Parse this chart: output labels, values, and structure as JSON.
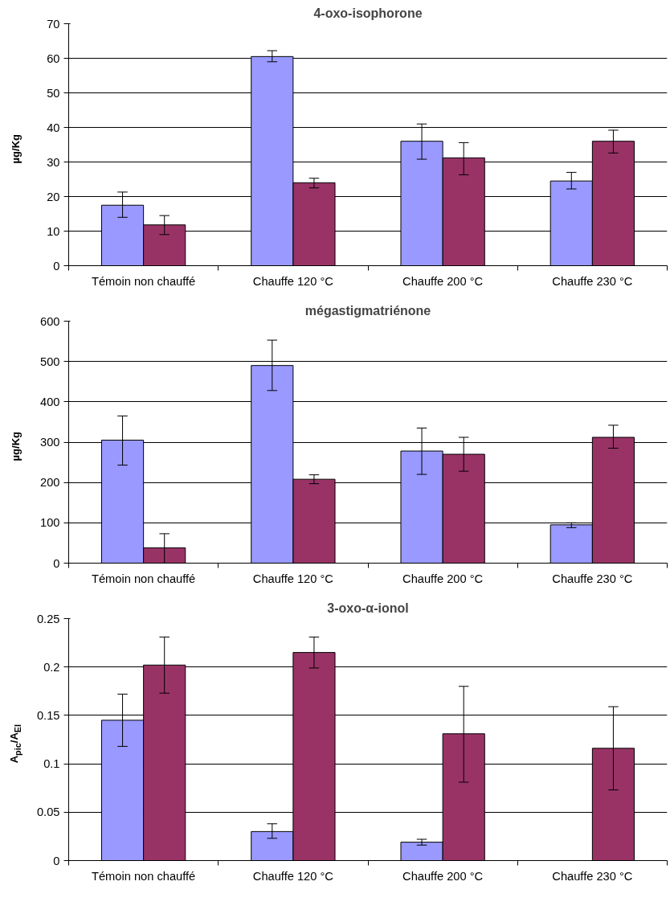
{
  "chart_data": [
    {
      "type": "bar",
      "title": "4-oxo-isophorone",
      "ylabel": "µg/Kg",
      "categories": [
        "Témoin non chauffé",
        "Chauffe 120 °C",
        "Chauffe 200 °C",
        "Chauffe 230 °C"
      ],
      "ylim": [
        0,
        70
      ],
      "yticks": [
        0,
        10,
        20,
        30,
        40,
        50,
        60,
        70
      ],
      "grid": "y",
      "series": [
        {
          "color": "#9999ff",
          "values": [
            17.5,
            60.5,
            36,
            24.5
          ],
          "errors": [
            [
              14,
              21.3
            ],
            [
              59,
              62.2
            ],
            [
              30.8,
              41
            ],
            [
              22.2,
              27
            ]
          ]
        },
        {
          "color": "#993366",
          "values": [
            11.8,
            24,
            31.2,
            36
          ],
          "errors": [
            [
              9,
              14.5
            ],
            [
              22.5,
              25.3
            ],
            [
              26.3,
              35.6
            ],
            [
              32.6,
              39.2
            ]
          ]
        }
      ]
    },
    {
      "type": "bar",
      "title": "mégastigmatriénone",
      "ylabel": "µg/Kg",
      "categories": [
        "Témoin non chauffé",
        "Chauffe 120 °C",
        "Chauffe 200 °C",
        "Chauffe 230 °C"
      ],
      "ylim": [
        0,
        600
      ],
      "yticks": [
        0,
        100,
        200,
        300,
        400,
        500,
        600
      ],
      "grid": "y",
      "series": [
        {
          "color": "#9999ff",
          "values": [
            305,
            490,
            278,
            95
          ],
          "errors": [
            [
              243,
              365
            ],
            [
              428,
              553
            ],
            [
              220,
              335
            ],
            [
              88,
              100
            ]
          ]
        },
        {
          "color": "#993366",
          "values": [
            38,
            208,
            270,
            312
          ],
          "errors": [
            [
              0,
              73
            ],
            [
              197,
              219
            ],
            [
              228,
              312
            ],
            [
              285,
              342
            ]
          ]
        }
      ]
    },
    {
      "type": "bar",
      "title": "3-oxo-α-ionol",
      "ylabel": "A$_{pic}$/A$_{EI}$",
      "categories": [
        "Témoin non chauffé",
        "Chauffe 120 °C",
        "Chauffe 200 °C",
        "Chauffe 230 °C"
      ],
      "ylim": [
        0,
        0.25
      ],
      "yticks": [
        0,
        0.05,
        0.1,
        0.15,
        0.2,
        0.25
      ],
      "grid": "y",
      "series": [
        {
          "color": "#9999ff",
          "values": [
            0.145,
            0.03,
            0.019,
            0
          ],
          "errors": [
            [
              0.118,
              0.172
            ],
            [
              0.023,
              0.038
            ],
            [
              0.016,
              0.022
            ],
            null
          ]
        },
        {
          "color": "#993366",
          "values": [
            0.202,
            0.215,
            0.131,
            0.116
          ],
          "errors": [
            [
              0.173,
              0.231
            ],
            [
              0.199,
              0.231
            ],
            [
              0.081,
              0.18
            ],
            [
              0.073,
              0.159
            ]
          ]
        }
      ]
    }
  ]
}
